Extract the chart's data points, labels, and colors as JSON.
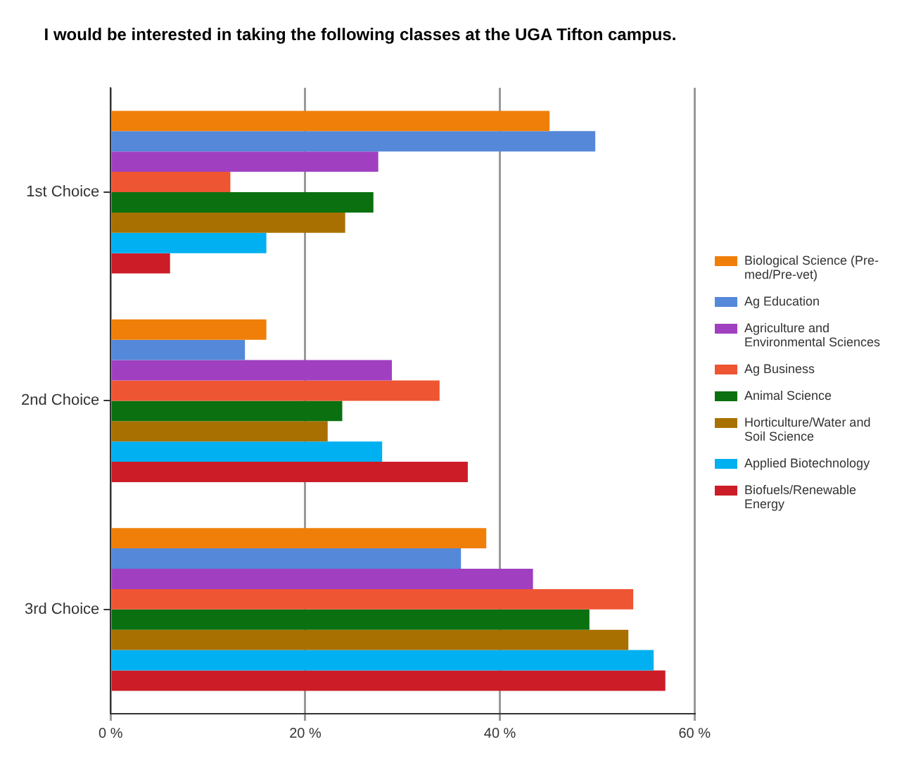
{
  "chart_data": {
    "type": "bar",
    "orientation": "horizontal",
    "title": "I would be interested in taking the following classes at the UGA Tifton campus.",
    "categories": [
      "1st Choice",
      "2nd Choice",
      "3rd Choice"
    ],
    "series": [
      {
        "name": "Biological Science (Pre-med/Pre-vet)",
        "color": "#f07f09",
        "values": [
          45.1,
          16,
          38.6
        ]
      },
      {
        "name": "Ag Education",
        "color": "#5588d8",
        "values": [
          49.8,
          13.8,
          36
        ]
      },
      {
        "name": "Agriculture and Environmental Sciences",
        "color": "#a040c0",
        "values": [
          27.5,
          28.9,
          43.4
        ]
      },
      {
        "name": "Ag Business",
        "color": "#ee5533",
        "values": [
          12.3,
          33.8,
          53.7
        ]
      },
      {
        "name": "Animal Science",
        "color": "#0a7010",
        "values": [
          27,
          23.8,
          49.2
        ]
      },
      {
        "name": "Horticulture/Water and Soil Science",
        "color": "#a87000",
        "values": [
          24.1,
          22.3,
          53.2
        ]
      },
      {
        "name": "Applied Biotechnology",
        "color": "#00b0f0",
        "values": [
          16,
          27.9,
          55.8
        ]
      },
      {
        "name": "Biofuels/Renewable Energy",
        "color": "#cc1c28",
        "values": [
          6.1,
          36.7,
          57
        ]
      }
    ],
    "xlim": [
      0,
      60
    ],
    "xticks": [
      {
        "value": 0,
        "label": "0 %"
      },
      {
        "value": 20,
        "label": "20 %"
      },
      {
        "value": 40,
        "label": "40 %"
      },
      {
        "value": 60,
        "label": "60 %"
      }
    ],
    "grid": "x",
    "legend": "right"
  }
}
